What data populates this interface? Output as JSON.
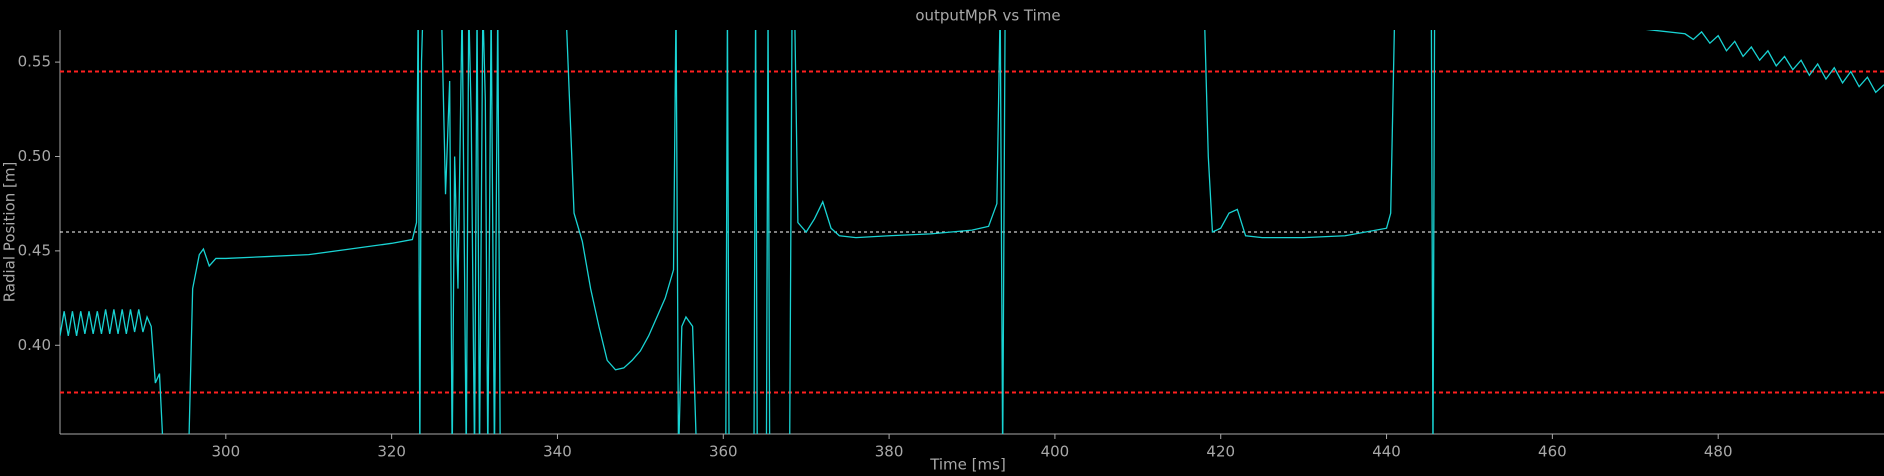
{
  "chart_data": {
    "type": "line",
    "title": "outputMpR vs Time",
    "x_label": "Time [ms]",
    "y_label": "Radial Position [m]",
    "xlim": [
      280,
      500
    ],
    "ylim": [
      0.353,
      0.567
    ],
    "xticks": [
      300,
      320,
      340,
      360,
      380,
      400,
      420,
      440,
      460,
      480
    ],
    "yticks": [
      {
        "value": 0.4,
        "label": "0.40"
      },
      {
        "value": 0.45,
        "label": "0.45"
      },
      {
        "value": 0.5,
        "label": "0.50"
      },
      {
        "value": 0.55,
        "label": "0.55"
      }
    ],
    "reference_lines": [
      {
        "value": 0.545,
        "color": "#ff2020"
      },
      {
        "value": 0.375,
        "color": "#ff2020"
      },
      {
        "value": 0.46,
        "color": "#ffffff"
      }
    ],
    "x": [
      280,
      280.5,
      281,
      281.5,
      282,
      282.5,
      283,
      283.5,
      284,
      284.5,
      285,
      285.5,
      286,
      286.5,
      287,
      287.5,
      288,
      288.5,
      289,
      289.5,
      290,
      290.5,
      291,
      291.5,
      292,
      292.5,
      295.5,
      296,
      296.8,
      297.3,
      298,
      298.8,
      300,
      305,
      310,
      315,
      320,
      322.5,
      323,
      323.2,
      323.4,
      323.6,
      323.8,
      324.5,
      326,
      326.5,
      327,
      327.3,
      327.6,
      328,
      328.5,
      329,
      329.3,
      329.6,
      330,
      330.3,
      330.6,
      331,
      331.3,
      331.6,
      332,
      332.4,
      332.8,
      333.1,
      336,
      341,
      342,
      343,
      344,
      345,
      346,
      347,
      348,
      349,
      350,
      351,
      352,
      353,
      354,
      354.3,
      354.6,
      355,
      355.5,
      356.3,
      356.8,
      357.2,
      360.3,
      360.5,
      360.7,
      363.7,
      363.9,
      364.1,
      365.2,
      365.4,
      365.6,
      368,
      368.3,
      368.6,
      369,
      370,
      371,
      372,
      373,
      374,
      376,
      380,
      385,
      390,
      392,
      393,
      393.4,
      393.7,
      394,
      418,
      418.5,
      419,
      420,
      421,
      422,
      423,
      425,
      430,
      435,
      440,
      440.5,
      441,
      445.4,
      445.6,
      445.8,
      476,
      477,
      478,
      479,
      480,
      481,
      482,
      483,
      484,
      485,
      486,
      487,
      488,
      489,
      490,
      491,
      492,
      493,
      494,
      495,
      496,
      497,
      498,
      499,
      500
    ],
    "series": [
      {
        "name": "outputMpR",
        "color": "#19d3d3",
        "values": [
          0.405,
          0.418,
          0.405,
          0.418,
          0.405,
          0.418,
          0.406,
          0.418,
          0.406,
          0.418,
          0.406,
          0.419,
          0.406,
          0.419,
          0.406,
          0.419,
          0.406,
          0.419,
          0.407,
          0.419,
          0.407,
          0.415,
          0.41,
          0.38,
          0.385,
          0.34,
          0.34,
          0.43,
          0.448,
          0.451,
          0.442,
          0.446,
          0.446,
          0.447,
          0.448,
          0.451,
          0.454,
          0.456,
          0.465,
          0.58,
          0.34,
          0.55,
          0.58,
          0.58,
          0.58,
          0.48,
          0.54,
          0.34,
          0.5,
          0.43,
          0.58,
          0.34,
          0.58,
          0.52,
          0.34,
          0.58,
          0.34,
          0.58,
          0.53,
          0.34,
          0.58,
          0.34,
          0.58,
          0.34,
          null,
          0.58,
          0.47,
          0.455,
          0.43,
          0.41,
          0.392,
          0.387,
          0.388,
          0.392,
          0.397,
          0.405,
          0.415,
          0.425,
          0.44,
          0.58,
          0.34,
          0.41,
          0.415,
          0.41,
          0.34,
          null,
          0.34,
          0.58,
          0.34,
          0.34,
          0.58,
          0.34,
          0.34,
          0.58,
          0.34,
          0.34,
          0.58,
          0.58,
          0.465,
          0.46,
          0.467,
          0.476,
          0.462,
          0.458,
          0.457,
          0.458,
          0.459,
          0.461,
          0.463,
          0.475,
          0.58,
          0.34,
          0.58,
          0.58,
          0.5,
          0.46,
          0.462,
          0.47,
          0.472,
          0.458,
          0.457,
          0.457,
          0.458,
          0.462,
          0.47,
          0.58,
          0.58,
          0.34,
          0.58,
          0.565,
          0.562,
          0.566,
          0.56,
          0.564,
          0.556,
          0.561,
          0.553,
          0.558,
          0.551,
          0.556,
          0.548,
          0.553,
          0.546,
          0.551,
          0.543,
          0.549,
          0.541,
          0.547,
          0.539,
          0.545,
          0.537,
          0.542,
          0.534,
          0.538
        ]
      }
    ]
  }
}
